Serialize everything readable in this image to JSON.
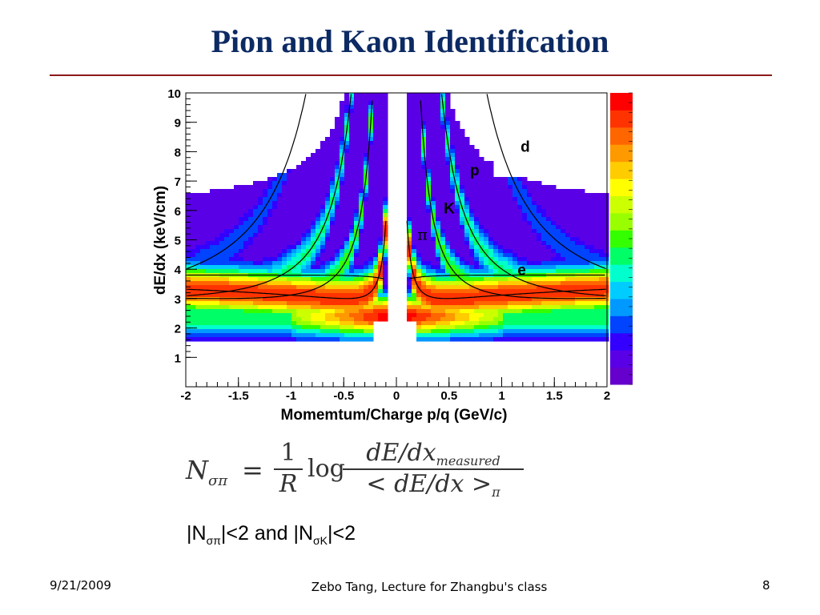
{
  "slide": {
    "title": "Pion and Kaon Identification",
    "formula": {
      "lhs": "N",
      "lhs_sub": "σπ",
      "equals": "=",
      "frac1_num": "1",
      "frac1_den": "R",
      "log": "log",
      "frac2_num": "dE/dx",
      "frac2_num_sub": "measured",
      "frac2_den": "< dE/dx >",
      "frac2_den_sub": "π"
    },
    "condition": {
      "part1": "|N",
      "sub1": "σπ",
      "part2": "|<2  and |N",
      "sub2": "σK",
      "part3": "|<2"
    },
    "footer": {
      "date": "9/21/2009",
      "center": "Zebo Tang, Lecture for Zhangbu's class",
      "page": "8"
    }
  },
  "chart_data": {
    "type": "heatmap",
    "title": "",
    "xlabel": "Momemtum/Charge p/q (GeV/c)",
    "ylabel": "dE/dx (keV/cm)",
    "xlim": [
      -2,
      2
    ],
    "ylim": [
      0,
      10
    ],
    "x_ticks": [
      {
        "value": -2,
        "label": "-2"
      },
      {
        "value": -1.5,
        "label": "-1.5"
      },
      {
        "value": -1,
        "label": "-1"
      },
      {
        "value": -0.5,
        "label": "-0.5"
      },
      {
        "value": 0,
        "label": "0"
      },
      {
        "value": 0.5,
        "label": "0.5"
      },
      {
        "value": 1,
        "label": "1"
      },
      {
        "value": 1.5,
        "label": "1.5"
      },
      {
        "value": 2,
        "label": "2"
      }
    ],
    "y_ticks": [
      {
        "value": 1,
        "label": "1"
      },
      {
        "value": 2,
        "label": "2"
      },
      {
        "value": 3,
        "label": "3"
      },
      {
        "value": 4,
        "label": "4"
      },
      {
        "value": 5,
        "label": "5"
      },
      {
        "value": 6,
        "label": "6"
      },
      {
        "value": 7,
        "label": "7"
      },
      {
        "value": 8,
        "label": "8"
      },
      {
        "value": 9,
        "label": "9"
      },
      {
        "value": 10,
        "label": "10"
      }
    ],
    "curve_labels": [
      {
        "text": "d",
        "x": 1.18,
        "y": 8.0
      },
      {
        "text": "p",
        "x": 0.7,
        "y": 7.2
      },
      {
        "text": "K",
        "x": 0.45,
        "y": 5.9
      },
      {
        "text": "π",
        "x": 0.2,
        "y": 5.0
      },
      {
        "text": "e",
        "x": 1.15,
        "y": 3.8
      }
    ],
    "palette": [
      "#6600cc",
      "#5a00e6",
      "#3300ff",
      "#0044ff",
      "#0099ff",
      "#00ccff",
      "#00ffcc",
      "#00ff66",
      "#33ff00",
      "#99ff00",
      "#ccff00",
      "#ffff00",
      "#ffcc00",
      "#ff9900",
      "#ff6600",
      "#ff3300",
      "#ff0000"
    ],
    "grid": false,
    "color_scale_position": "right"
  }
}
